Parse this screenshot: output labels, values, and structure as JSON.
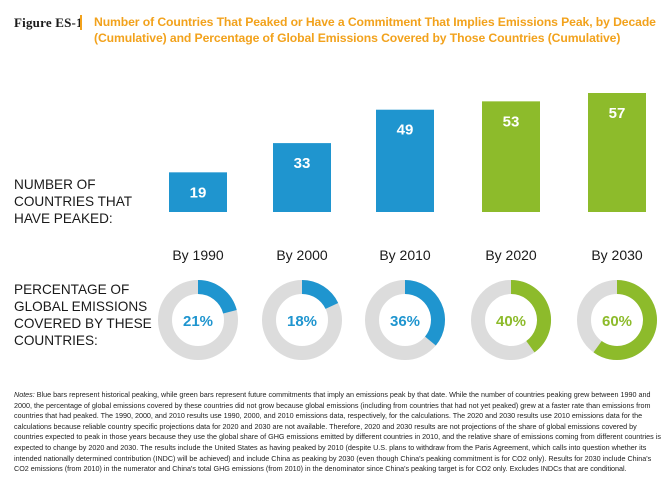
{
  "figure": {
    "label": "Figure ES-1",
    "title": "Number of Countries That Peaked or Have a Commitment That Implies Emissions Peak, by Decade (Cumulative) and Percentage of Global Emissions Covered by Those Countries (Cumulative)"
  },
  "row_labels": {
    "countries": "NUMBER OF COUNTRIES THAT HAVE PEAKED:",
    "emissions": "PERCENTAGE OF GLOBAL EMISSIONS COVERED BY THESE COUNTRIES:"
  },
  "colors": {
    "historical": "#1f95cf",
    "commitment": "#8dbb2b",
    "ring_track": "#dcdcdc",
    "title": "#f2a21c"
  },
  "chart_data": [
    {
      "type": "bar",
      "categories": [
        "By 1990",
        "By 2000",
        "By 2010",
        "By 2020",
        "By 2030"
      ],
      "values": [
        19,
        33,
        49,
        53,
        57
      ],
      "value_labels": [
        "19",
        "33",
        "49",
        "53",
        "57"
      ],
      "kind": [
        "historical",
        "historical",
        "historical",
        "commitment",
        "commitment"
      ],
      "ylim": [
        0,
        57
      ]
    },
    {
      "type": "pie",
      "categories": [
        "By 1990",
        "By 2000",
        "By 2010",
        "By 2020",
        "By 2030"
      ],
      "values": [
        21,
        18,
        36,
        40,
        60
      ],
      "value_labels": [
        "21%",
        "18%",
        "36%",
        "40%",
        "60%"
      ],
      "kind": [
        "historical",
        "historical",
        "historical",
        "commitment",
        "commitment"
      ]
    }
  ],
  "notes": {
    "lead": "Notes:",
    "text": "Blue bars represent historical peaking, while green bars represent future commitments that imply an emissions peak by that date. While the number of countries peaking grew between 1990 and 2000, the percentage of global emissions covered by these countries did not grow because global emissions (including from countries that had not yet peaked) grew at a faster rate than emissions from countries that had peaked. The 1990, 2000, and 2010 results use 1990, 2000, and 2010 emissions data, respectively, for the calculations. The 2020 and 2030 results use 2010 emissions data for the calculations because reliable country specific projections data for 2020 and 2030 are not available. Therefore, 2020 and 2030 results are not projections of the share of global emissions covered by countries expected to peak in those years because they use the global share of GHG emissions emitted by different countries in 2010, and the relative share of emissions coming from different countries is expected to change by 2020 and 2030. The results include the United States as having peaked by 2010 (despite U.S. plans to withdraw from the Paris Agreement, which calls into question whether its intended nationally determined contribution (INDC) will be achieved) and include China as peaking by 2030 (even though China's peaking commitment is for CO2 only). Results for 2030 include China's CO2 emissions (from 2010) in the numerator and China's total GHG emissions (from 2010) in the denominator since China's peaking target is for CO2 only. Excludes INDCs that are conditional."
  }
}
